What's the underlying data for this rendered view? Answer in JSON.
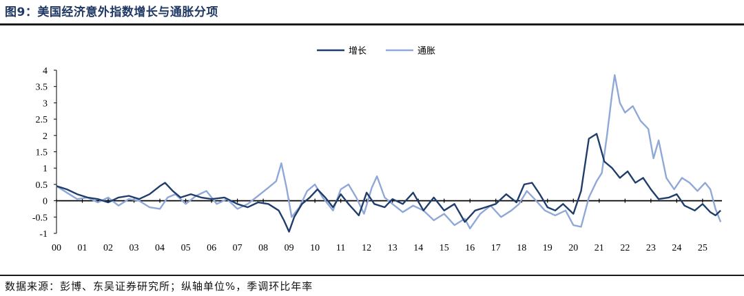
{
  "title": "图9：美国经济意外指数增长与通胀分项",
  "source": "数据来源：彭博、东吴证券研究所；纵轴单位%，季调环比年率",
  "colors": {
    "growth": "#1f3d6b",
    "inflation": "#8fa8d8",
    "axis": "#000000"
  },
  "chart_data": {
    "type": "line",
    "xlabel": "",
    "ylabel": "",
    "xlim": [
      2000.0,
      2025.75
    ],
    "ylim": [
      -1,
      4
    ],
    "yticks": [
      "4",
      "3.5",
      "3",
      "2.5",
      "2",
      "1.5",
      "1",
      "0.5",
      "0",
      "-0.5",
      "-1"
    ],
    "xticks": [
      "00",
      "01",
      "02",
      "03",
      "04",
      "05",
      "06",
      "07",
      "08",
      "09",
      "10",
      "11",
      "12",
      "13",
      "14",
      "15",
      "16",
      "17",
      "18",
      "19",
      "20",
      "21",
      "22",
      "23",
      "24",
      "25"
    ],
    "legend_position": "top-center",
    "grid": false,
    "series": [
      {
        "name": "增长",
        "color": "#1f3d6b",
        "points": [
          [
            2000.0,
            0.45
          ],
          [
            2000.4,
            0.35
          ],
          [
            2000.8,
            0.2
          ],
          [
            2001.2,
            0.1
          ],
          [
            2001.6,
            0.05
          ],
          [
            2002.0,
            -0.05
          ],
          [
            2002.4,
            0.1
          ],
          [
            2002.8,
            0.15
          ],
          [
            2003.2,
            0.05
          ],
          [
            2003.6,
            0.2
          ],
          [
            2004.0,
            0.45
          ],
          [
            2004.2,
            0.55
          ],
          [
            2004.5,
            0.3
          ],
          [
            2004.8,
            0.1
          ],
          [
            2005.2,
            0.2
          ],
          [
            2005.6,
            0.1
          ],
          [
            2006.0,
            0.05
          ],
          [
            2006.5,
            0.1
          ],
          [
            2007.0,
            -0.1
          ],
          [
            2007.4,
            -0.2
          ],
          [
            2007.8,
            -0.05
          ],
          [
            2008.2,
            -0.1
          ],
          [
            2008.6,
            -0.3
          ],
          [
            2008.8,
            -0.6
          ],
          [
            2009.0,
            -0.95
          ],
          [
            2009.2,
            -0.5
          ],
          [
            2009.5,
            -0.1
          ],
          [
            2009.8,
            0.1
          ],
          [
            2010.1,
            0.35
          ],
          [
            2010.4,
            0.1
          ],
          [
            2010.7,
            -0.2
          ],
          [
            2011.0,
            0.2
          ],
          [
            2011.3,
            -0.1
          ],
          [
            2011.7,
            -0.45
          ],
          [
            2012.0,
            0.25
          ],
          [
            2012.3,
            -0.1
          ],
          [
            2012.7,
            -0.2
          ],
          [
            2013.0,
            0.05
          ],
          [
            2013.4,
            -0.1
          ],
          [
            2013.8,
            0.25
          ],
          [
            2014.2,
            -0.3
          ],
          [
            2014.6,
            0.1
          ],
          [
            2015.0,
            -0.3
          ],
          [
            2015.4,
            -0.1
          ],
          [
            2015.8,
            -0.65
          ],
          [
            2016.2,
            -0.3
          ],
          [
            2016.6,
            -0.2
          ],
          [
            2017.0,
            -0.1
          ],
          [
            2017.4,
            0.2
          ],
          [
            2017.8,
            -0.05
          ],
          [
            2018.1,
            0.5
          ],
          [
            2018.4,
            0.55
          ],
          [
            2018.7,
            0.2
          ],
          [
            2019.0,
            -0.2
          ],
          [
            2019.3,
            -0.3
          ],
          [
            2019.6,
            -0.1
          ],
          [
            2020.0,
            -0.4
          ],
          [
            2020.3,
            0.3
          ],
          [
            2020.6,
            1.9
          ],
          [
            2020.9,
            2.05
          ],
          [
            2021.2,
            1.2
          ],
          [
            2021.5,
            1.0
          ],
          [
            2021.8,
            0.7
          ],
          [
            2022.1,
            0.9
          ],
          [
            2022.4,
            0.55
          ],
          [
            2022.7,
            0.7
          ],
          [
            2023.0,
            0.35
          ],
          [
            2023.3,
            0.05
          ],
          [
            2023.7,
            0.1
          ],
          [
            2024.0,
            0.2
          ],
          [
            2024.3,
            -0.15
          ],
          [
            2024.7,
            -0.3
          ],
          [
            2025.0,
            -0.1
          ],
          [
            2025.3,
            -0.35
          ],
          [
            2025.5,
            -0.45
          ],
          [
            2025.7,
            -0.3
          ]
        ]
      },
      {
        "name": "通胀",
        "color": "#8fa8d8",
        "points": [
          [
            2000.0,
            0.45
          ],
          [
            2000.4,
            0.25
          ],
          [
            2000.8,
            0.05
          ],
          [
            2001.2,
            0.1
          ],
          [
            2001.6,
            -0.05
          ],
          [
            2002.0,
            0.1
          ],
          [
            2002.4,
            -0.15
          ],
          [
            2002.8,
            0.05
          ],
          [
            2003.2,
            0.0
          ],
          [
            2003.6,
            -0.2
          ],
          [
            2004.0,
            -0.25
          ],
          [
            2004.3,
            0.1
          ],
          [
            2004.6,
            0.2
          ],
          [
            2005.0,
            -0.1
          ],
          [
            2005.4,
            0.15
          ],
          [
            2005.8,
            0.3
          ],
          [
            2006.2,
            -0.1
          ],
          [
            2006.6,
            0.05
          ],
          [
            2007.0,
            -0.25
          ],
          [
            2007.4,
            -0.1
          ],
          [
            2007.8,
            0.15
          ],
          [
            2008.2,
            0.4
          ],
          [
            2008.5,
            0.6
          ],
          [
            2008.7,
            1.15
          ],
          [
            2008.9,
            0.4
          ],
          [
            2009.1,
            -0.5
          ],
          [
            2009.4,
            -0.2
          ],
          [
            2009.7,
            0.3
          ],
          [
            2010.0,
            0.5
          ],
          [
            2010.3,
            0.1
          ],
          [
            2010.7,
            -0.3
          ],
          [
            2011.0,
            0.35
          ],
          [
            2011.3,
            0.5
          ],
          [
            2011.6,
            0.1
          ],
          [
            2011.9,
            -0.4
          ],
          [
            2012.2,
            0.4
          ],
          [
            2012.4,
            0.75
          ],
          [
            2012.7,
            0.1
          ],
          [
            2013.0,
            -0.1
          ],
          [
            2013.4,
            -0.35
          ],
          [
            2013.8,
            -0.15
          ],
          [
            2014.2,
            -0.3
          ],
          [
            2014.6,
            -0.6
          ],
          [
            2015.0,
            -0.4
          ],
          [
            2015.4,
            -0.75
          ],
          [
            2015.8,
            -0.55
          ],
          [
            2016.0,
            -0.85
          ],
          [
            2016.4,
            -0.4
          ],
          [
            2016.8,
            -0.15
          ],
          [
            2017.2,
            -0.5
          ],
          [
            2017.6,
            -0.3
          ],
          [
            2017.9,
            -0.1
          ],
          [
            2018.2,
            0.3
          ],
          [
            2018.5,
            0.05
          ],
          [
            2018.9,
            -0.3
          ],
          [
            2019.3,
            -0.45
          ],
          [
            2019.7,
            -0.3
          ],
          [
            2020.0,
            -0.75
          ],
          [
            2020.3,
            -0.8
          ],
          [
            2020.6,
            0.1
          ],
          [
            2020.9,
            0.6
          ],
          [
            2021.1,
            0.85
          ],
          [
            2021.3,
            2.0
          ],
          [
            2021.5,
            3.3
          ],
          [
            2021.6,
            3.85
          ],
          [
            2021.8,
            3.0
          ],
          [
            2022.0,
            2.7
          ],
          [
            2022.3,
            2.9
          ],
          [
            2022.6,
            2.45
          ],
          [
            2022.9,
            2.2
          ],
          [
            2023.1,
            1.3
          ],
          [
            2023.3,
            1.85
          ],
          [
            2023.6,
            0.7
          ],
          [
            2023.9,
            0.35
          ],
          [
            2024.2,
            0.7
          ],
          [
            2024.5,
            0.55
          ],
          [
            2024.8,
            0.3
          ],
          [
            2025.1,
            0.55
          ],
          [
            2025.3,
            0.35
          ],
          [
            2025.5,
            -0.25
          ],
          [
            2025.7,
            -0.65
          ]
        ]
      }
    ]
  }
}
